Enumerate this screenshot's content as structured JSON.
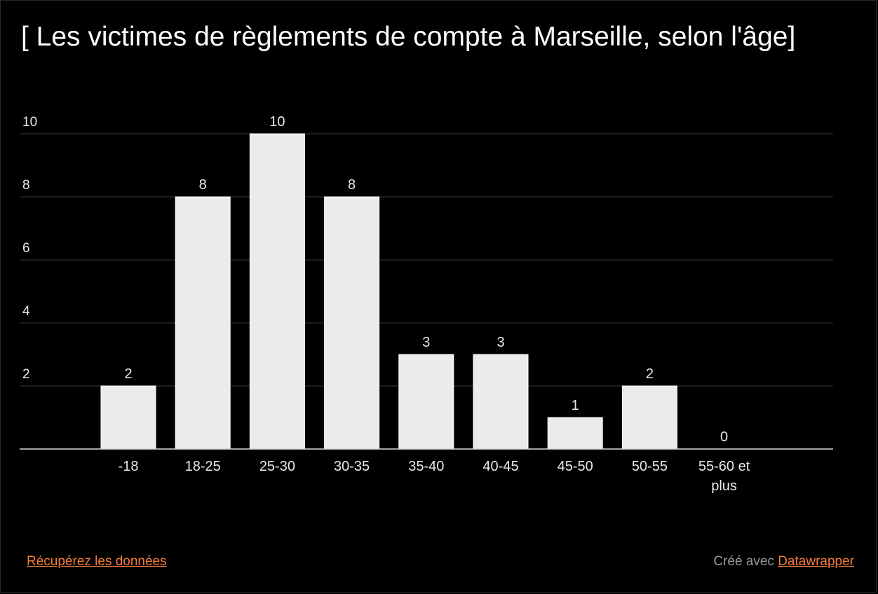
{
  "chart_data": {
    "type": "bar",
    "title": "[ Les victimes de règlements de compte à Marseille, selon l'âge]",
    "categories": [
      "-18",
      "18-25",
      "25-30",
      "30-35",
      "35-40",
      "40-45",
      "45-50",
      "50-55",
      "55-60 et plus"
    ],
    "values": [
      2,
      8,
      10,
      8,
      3,
      3,
      1,
      2,
      0
    ],
    "y_ticks": [
      2,
      4,
      6,
      8,
      10
    ],
    "ylim": [
      0,
      10
    ],
    "xlabel": "",
    "ylabel": "",
    "grid": true,
    "colors": {
      "bar": "#ebebeb",
      "grid": "#3a3a3a",
      "axis": "#d8d8d8",
      "text": "#e8e8e8"
    }
  },
  "footer": {
    "data_link": "Récupérez les données",
    "credit_prefix": "Créé avec",
    "credit_link": "Datawrapper"
  }
}
